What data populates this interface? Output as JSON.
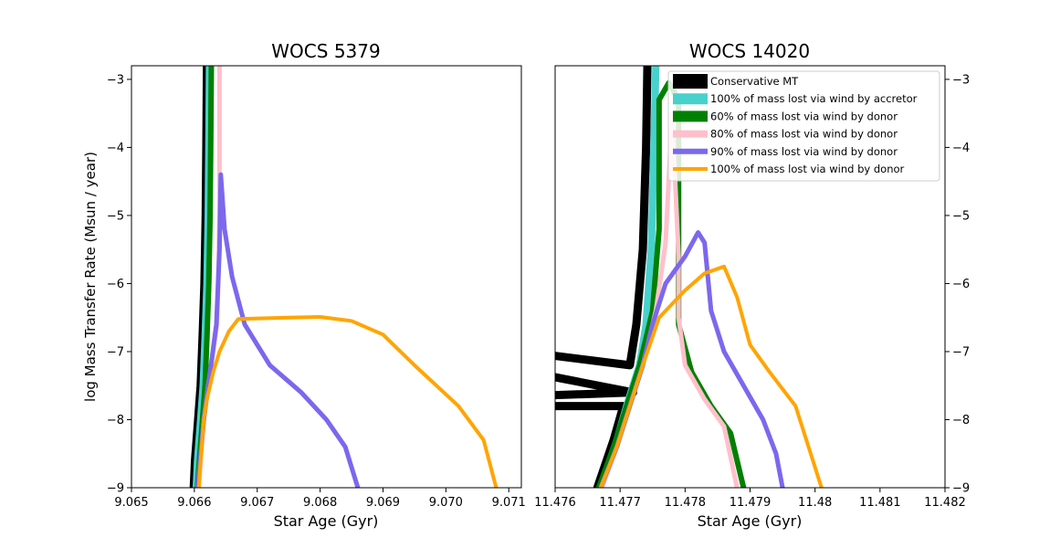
{
  "chart_data": [
    {
      "type": "line",
      "title": "WOCS 5379",
      "xlabel": "Star Age (Gyr)",
      "ylabel": "log Mass Transfer Rate (Msun / year)",
      "xlim": [
        9.065,
        9.0712
      ],
      "ylim": [
        -9,
        -2.8
      ],
      "xticks": [
        "9.065",
        "9.066",
        "9.067",
        "9.068",
        "9.069",
        "9.070",
        "9.071"
      ],
      "xtick_values": [
        9.065,
        9.066,
        9.067,
        9.068,
        9.069,
        9.07,
        9.071
      ],
      "yticks": [
        "−3",
        "−4",
        "−5",
        "−6",
        "−7",
        "−8",
        "−9"
      ],
      "ytick_values": [
        -3,
        -4,
        -5,
        -6,
        -7,
        -8,
        -9
      ],
      "series": [
        {
          "name": "Conservative MT",
          "color": "#000000",
          "points": [
            [
              9.06599,
              -9.0
            ],
            [
              9.06601,
              -8.6
            ],
            [
              9.06606,
              -8.0
            ],
            [
              9.0661,
              -7.5
            ],
            [
              9.06613,
              -6.8
            ],
            [
              9.06616,
              -6.0
            ],
            [
              9.06618,
              -5.0
            ],
            [
              9.06619,
              -4.0
            ],
            [
              9.0662,
              -2.8
            ]
          ]
        },
        {
          "name": "100% of mass lost via wind by accretor",
          "color": "#48d1cc",
          "points": [
            [
              9.06603,
              -9.0
            ],
            [
              9.06605,
              -8.6
            ],
            [
              9.0661,
              -8.0
            ],
            [
              9.06614,
              -7.5
            ],
            [
              9.06617,
              -6.8
            ],
            [
              9.0662,
              -6.0
            ],
            [
              9.06622,
              -5.0
            ],
            [
              9.06623,
              -4.0
            ],
            [
              9.06624,
              -2.8
            ]
          ]
        },
        {
          "name": "60% of mass lost via wind by donor",
          "color": "#008000",
          "points": [
            [
              9.06605,
              -9.0
            ],
            [
              9.06608,
              -8.6
            ],
            [
              9.06613,
              -8.0
            ],
            [
              9.06617,
              -7.5
            ],
            [
              9.0662,
              -6.8
            ],
            [
              9.06623,
              -6.0
            ],
            [
              9.06625,
              -5.0
            ],
            [
              9.06626,
              -4.0
            ],
            [
              9.06627,
              -2.8
            ]
          ]
        },
        {
          "name": "80% of mass lost via wind by donor",
          "color": "#ffc0cb",
          "points": [
            [
              9.06607,
              -9.0
            ],
            [
              9.0661,
              -8.6
            ],
            [
              9.06615,
              -8.0
            ],
            [
              9.06622,
              -7.5
            ],
            [
              9.0663,
              -7.0
            ],
            [
              9.06636,
              -6.6
            ],
            [
              9.06638,
              -6.0
            ],
            [
              9.0664,
              -5.0
            ],
            [
              9.0664,
              -4.0
            ],
            [
              9.0664,
              -2.8
            ]
          ]
        },
        {
          "name": "90% of mass lost via wind by donor",
          "color": "#7b68ee",
          "points": [
            [
              9.06605,
              -9.0
            ],
            [
              9.0661,
              -8.5
            ],
            [
              9.06615,
              -8.0
            ],
            [
              9.06625,
              -7.3
            ],
            [
              9.06635,
              -6.6
            ],
            [
              9.0664,
              -5.5
            ],
            [
              9.06642,
              -4.4
            ],
            [
              9.06648,
              -5.2
            ],
            [
              9.0666,
              -5.9
            ],
            [
              9.0668,
              -6.6
            ],
            [
              9.0672,
              -7.2
            ],
            [
              9.0677,
              -7.6
            ],
            [
              9.0681,
              -8.0
            ],
            [
              9.0684,
              -8.4
            ],
            [
              9.0686,
              -9.0
            ]
          ]
        },
        {
          "name": "100% of mass lost via wind by donor",
          "color": "#ffa500",
          "points": [
            [
              9.06607,
              -9.0
            ],
            [
              9.0661,
              -8.6
            ],
            [
              9.06615,
              -8.0
            ],
            [
              9.0662,
              -7.7
            ],
            [
              9.0663,
              -7.3
            ],
            [
              9.0664,
              -7.0
            ],
            [
              9.06655,
              -6.7
            ],
            [
              9.0667,
              -6.52
            ],
            [
              9.0675,
              -6.5
            ],
            [
              9.068,
              -6.49
            ],
            [
              9.0685,
              -6.55
            ],
            [
              9.069,
              -6.75
            ],
            [
              9.0695,
              -7.2
            ],
            [
              9.0702,
              -7.8
            ],
            [
              9.0706,
              -8.3
            ],
            [
              9.0708,
              -9.0
            ]
          ]
        }
      ]
    },
    {
      "type": "line",
      "title": "WOCS 14020",
      "xlabel": "Star Age (Gyr)",
      "ylabel": "",
      "xlim": [
        11.476,
        11.482
      ],
      "ylim": [
        -9,
        -2.8
      ],
      "xticks": [
        "11.476",
        "11.477",
        "11.478",
        "11.479",
        "11.48",
        "11.481",
        "11.482"
      ],
      "xtick_values": [
        11.476,
        11.477,
        11.478,
        11.479,
        11.48,
        11.481,
        11.482
      ],
      "yticks": [
        "−3",
        "−4",
        "−5",
        "−6",
        "−7",
        "−8",
        "−9"
      ],
      "ytick_values": [
        -3,
        -4,
        -5,
        -6,
        -7,
        -8,
        -9
      ],
      "legend": "upper right",
      "series": [
        {
          "name": "Conservative MT",
          "color": "#000000",
          "points": [
            [
              11.47665,
              -9.0
            ],
            [
              11.4769,
              -8.3
            ],
            [
              11.47705,
              -7.8
            ],
            [
              11.4712,
              -7.8
            ],
            [
              11.4772,
              -7.6
            ],
            [
              11.4713,
              -6.5
            ],
            [
              11.47715,
              -7.2
            ],
            [
              11.47725,
              -6.6
            ],
            [
              11.47735,
              -5.5
            ],
            [
              11.4774,
              -4.0
            ],
            [
              11.47742,
              -2.8
            ]
          ]
        },
        {
          "name": "100% of mass lost via wind by accretor",
          "color": "#48d1cc",
          "points": [
            [
              11.4767,
              -9.0
            ],
            [
              11.47695,
              -8.3
            ],
            [
              11.4771,
              -7.8
            ],
            [
              11.4773,
              -7.2
            ],
            [
              11.4774,
              -6.6
            ],
            [
              11.47748,
              -5.5
            ],
            [
              11.47752,
              -4.0
            ],
            [
              11.47755,
              -2.8
            ]
          ]
        },
        {
          "name": "60% of mass lost via wind by donor",
          "color": "#008000",
          "points": [
            [
              11.47667,
              -9.0
            ],
            [
              11.4769,
              -8.4
            ],
            [
              11.4771,
              -7.8
            ],
            [
              11.4773,
              -7.2
            ],
            [
              11.4775,
              -6.4
            ],
            [
              11.4776,
              -5.2
            ],
            [
              11.4776,
              -3.3
            ],
            [
              11.47775,
              -3.05
            ],
            [
              11.4779,
              -3.3
            ],
            [
              11.4779,
              -6.6
            ],
            [
              11.4781,
              -7.3
            ],
            [
              11.4784,
              -7.8
            ],
            [
              11.4787,
              -8.2
            ],
            [
              11.4789,
              -9.0
            ]
          ]
        },
        {
          "name": "80% of mass lost via wind by donor",
          "color": "#ffc0cb",
          "points": [
            [
              11.47672,
              -9.0
            ],
            [
              11.47695,
              -8.4
            ],
            [
              11.47715,
              -7.8
            ],
            [
              11.47735,
              -7.2
            ],
            [
              11.47755,
              -6.4
            ],
            [
              11.4777,
              -5.4
            ],
            [
              11.4778,
              -3.5
            ],
            [
              11.4779,
              -5.6
            ],
            [
              11.4779,
              -6.5
            ],
            [
              11.478,
              -7.2
            ],
            [
              11.4783,
              -7.7
            ],
            [
              11.4786,
              -8.1
            ],
            [
              11.4788,
              -9.0
            ]
          ]
        },
        {
          "name": "90% of mass lost via wind by donor",
          "color": "#7b68ee",
          "points": [
            [
              11.4767,
              -9.0
            ],
            [
              11.47695,
              -8.4
            ],
            [
              11.47715,
              -7.8
            ],
            [
              11.47735,
              -7.2
            ],
            [
              11.4775,
              -6.6
            ],
            [
              11.4777,
              -6.0
            ],
            [
              11.478,
              -5.6
            ],
            [
              11.4782,
              -5.25
            ],
            [
              11.4783,
              -5.4
            ],
            [
              11.4784,
              -6.4
            ],
            [
              11.4786,
              -7.0
            ],
            [
              11.4789,
              -7.5
            ],
            [
              11.4792,
              -8.0
            ],
            [
              11.4794,
              -8.5
            ],
            [
              11.4795,
              -9.0
            ]
          ]
        },
        {
          "name": "100% of mass lost via wind by donor",
          "color": "#ffa500",
          "points": [
            [
              11.4767,
              -9.0
            ],
            [
              11.47695,
              -8.4
            ],
            [
              11.47715,
              -7.8
            ],
            [
              11.47735,
              -7.2
            ],
            [
              11.4776,
              -6.5
            ],
            [
              11.478,
              -6.1
            ],
            [
              11.4783,
              -5.85
            ],
            [
              11.4786,
              -5.75
            ],
            [
              11.4788,
              -6.2
            ],
            [
              11.479,
              -6.9
            ],
            [
              11.4793,
              -7.3
            ],
            [
              11.4797,
              -7.8
            ],
            [
              11.4799,
              -8.4
            ],
            [
              11.4801,
              -9.0
            ]
          ]
        }
      ]
    }
  ]
}
